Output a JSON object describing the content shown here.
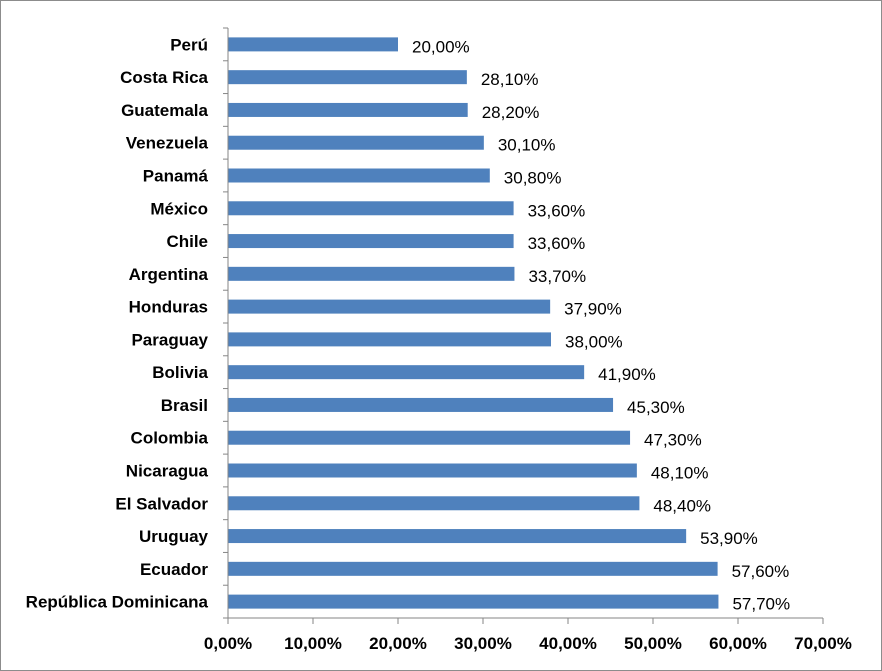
{
  "chart_data": {
    "type": "bar",
    "orientation": "horizontal",
    "title": "",
    "xlabel": "",
    "ylabel": "",
    "xlim": [
      0,
      70
    ],
    "grid": false,
    "legend": "none",
    "bar_color": "#4F81BD",
    "categories": [
      "Perú",
      "Costa Rica",
      "Guatemala",
      "Venezuela",
      "Panamá",
      "México",
      "Chile",
      "Argentina",
      "Honduras",
      "Paraguay",
      "Bolivia",
      "Brasil",
      "Colombia",
      "Nicaragua",
      "El Salvador",
      "Uruguay",
      "Ecuador",
      "República Dominicana"
    ],
    "values": [
      20.0,
      28.1,
      28.2,
      30.1,
      30.8,
      33.6,
      33.6,
      33.7,
      37.9,
      38.0,
      41.9,
      45.3,
      47.3,
      48.1,
      48.4,
      53.9,
      57.6,
      57.7
    ],
    "value_labels": [
      "20,00%",
      "28,10%",
      "28,20%",
      "30,10%",
      "30,80%",
      "33,60%",
      "33,60%",
      "33,70%",
      "37,90%",
      "38,00%",
      "41,90%",
      "45,30%",
      "47,30%",
      "48,10%",
      "48,40%",
      "53,90%",
      "57,60%",
      "57,70%"
    ],
    "x_ticks": [
      0,
      10,
      20,
      30,
      40,
      50,
      60,
      70
    ],
    "x_tick_labels": [
      "0,00%",
      "10,00%",
      "20,00%",
      "30,00%",
      "40,00%",
      "50,00%",
      "60,00%",
      "70,00%"
    ]
  }
}
